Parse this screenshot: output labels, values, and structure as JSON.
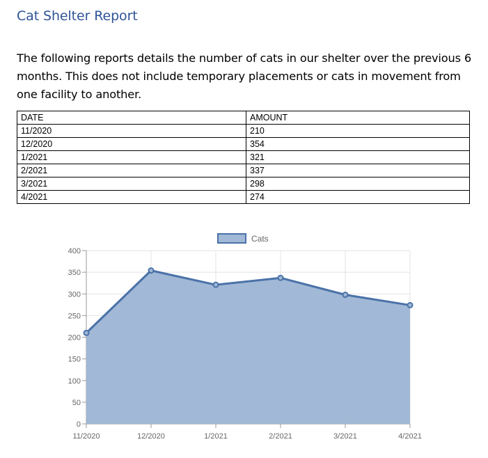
{
  "document": {
    "title": "Cat Shelter Report",
    "intro": "The following reports details the number of cats in our shelter over the previous 6 months. This does not include temporary placements or cats in movement from one facility to another."
  },
  "table": {
    "headers": [
      "DATE",
      "AMOUNT"
    ],
    "rows": [
      [
        "11/2020",
        "210"
      ],
      [
        "12/2020",
        "354"
      ],
      [
        "1/2021",
        "321"
      ],
      [
        "2/2021",
        "337"
      ],
      [
        "3/2021",
        "298"
      ],
      [
        "4/2021",
        "274"
      ]
    ]
  },
  "chart_data": {
    "type": "area",
    "categories": [
      "11/2020",
      "12/2020",
      "1/2021",
      "2/2021",
      "3/2021",
      "4/2021"
    ],
    "series": [
      {
        "name": "Cats",
        "values": [
          210,
          354,
          321,
          337,
          298,
          274
        ]
      }
    ],
    "ylim": [
      0,
      400
    ],
    "yticks": [
      "0",
      "50",
      "100",
      "150",
      "200",
      "250",
      "300",
      "350",
      "400"
    ],
    "grid": true,
    "legend": "top-center",
    "colors": {
      "line": "#4A72A8",
      "fill": "#A1B8D6"
    }
  }
}
